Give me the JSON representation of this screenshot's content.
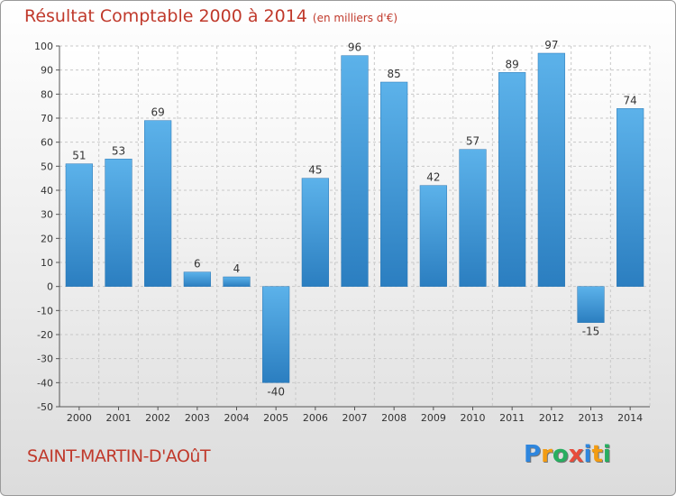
{
  "header": {
    "title": "Résultat Comptable 2000 à 2014",
    "unit": "(en milliers d'€)"
  },
  "footer": {
    "place": "SAINT-MARTIN-D'AOûT"
  },
  "logo": {
    "text": "Proxiti",
    "letters": [
      {
        "ch": "P",
        "color": "#2e86de"
      },
      {
        "ch": "r",
        "color": "#f39c12"
      },
      {
        "ch": "o",
        "color": "#27ae60"
      },
      {
        "ch": "x",
        "color": "#e74c3c"
      },
      {
        "ch": "i",
        "color": "#2e86de"
      },
      {
        "ch": "t",
        "color": "#f39c12"
      },
      {
        "ch": "i",
        "color": "#27ae60"
      }
    ]
  },
  "colors": {
    "bar": "#3d9ee0",
    "bar_dark": "#2a7fc0",
    "text_accent": "#c0392b"
  },
  "chart_data": {
    "type": "bar",
    "title": "Résultat Comptable 2000 à 2014",
    "subtitle": "(en milliers d'€)",
    "categories": [
      "2000",
      "2001",
      "2002",
      "2003",
      "2004",
      "2005",
      "2006",
      "2007",
      "2008",
      "2009",
      "2010",
      "2011",
      "2012",
      "2013",
      "2014"
    ],
    "values": [
      51,
      53,
      69,
      6,
      4,
      -40,
      45,
      96,
      85,
      42,
      57,
      89,
      97,
      -15,
      74
    ],
    "ylim": [
      -50,
      100
    ],
    "yticks": [
      -50,
      -40,
      -30,
      -20,
      -10,
      0,
      10,
      20,
      30,
      40,
      50,
      60,
      70,
      80,
      90,
      100
    ],
    "grid": true,
    "xlabel": "",
    "ylabel": ""
  }
}
